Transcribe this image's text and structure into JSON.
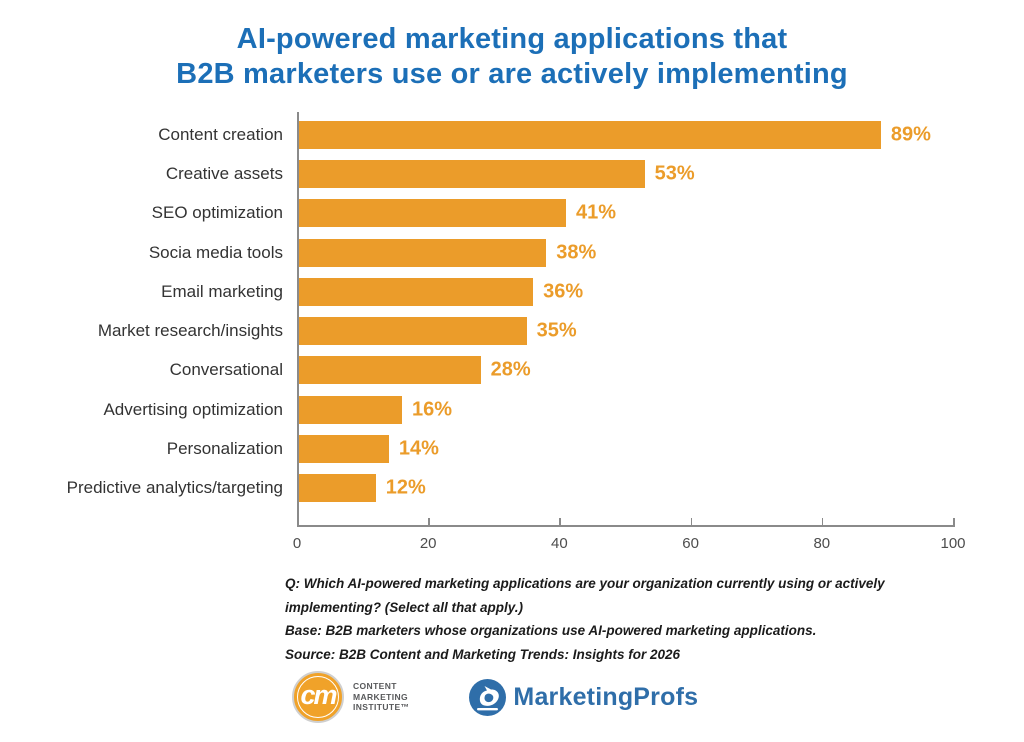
{
  "title": {
    "line1": "AI-powered marketing applications that",
    "line2": "B2B marketers use or are actively implementing"
  },
  "chart_data": {
    "type": "bar",
    "orientation": "horizontal",
    "categories": [
      "Content creation",
      "Creative assets",
      "SEO optimization",
      "Socia media tools",
      "Email marketing",
      "Market research/insights",
      "Conversational",
      "Advertising optimization",
      "Personalization",
      "Predictive analytics/targeting"
    ],
    "values": [
      89,
      53,
      41,
      38,
      36,
      35,
      28,
      16,
      14,
      12
    ],
    "value_labels": [
      "89%",
      "53%",
      "41%",
      "38%",
      "36%",
      "35%",
      "28%",
      "16%",
      "14%",
      "12%"
    ],
    "xlabel": "",
    "ylabel": "",
    "xlim": [
      0,
      100
    ],
    "xticks": [
      0,
      20,
      40,
      60,
      80,
      100
    ],
    "grid": false,
    "legend": null,
    "bar_color": "#EB9C2A",
    "value_label_color": "#EB9C2A"
  },
  "footnotes": {
    "lines": [
      "Q: Which AI-powered marketing applications are your organization currently using or actively",
      "implementing? (Select all that apply.)",
      "Base: B2B marketers whose organizations use AI-powered marketing applications.",
      "Source: B2B Content and Marketing Trends: Insights for 2026"
    ]
  },
  "logos": {
    "cmi": {
      "monogram": "cm",
      "text_lines": [
        "CONTENT",
        "MARKETING",
        "INSTITUTE™"
      ]
    },
    "marketingprofs": {
      "text": "MarketingProfs"
    }
  },
  "colors": {
    "title_blue": "#1C6FB7",
    "bar_orange": "#EB9C2A",
    "axis_gray": "#8A8A8A",
    "cmi_orange": "#F0A229",
    "marketingprofs_blue": "#2F6EA9"
  }
}
